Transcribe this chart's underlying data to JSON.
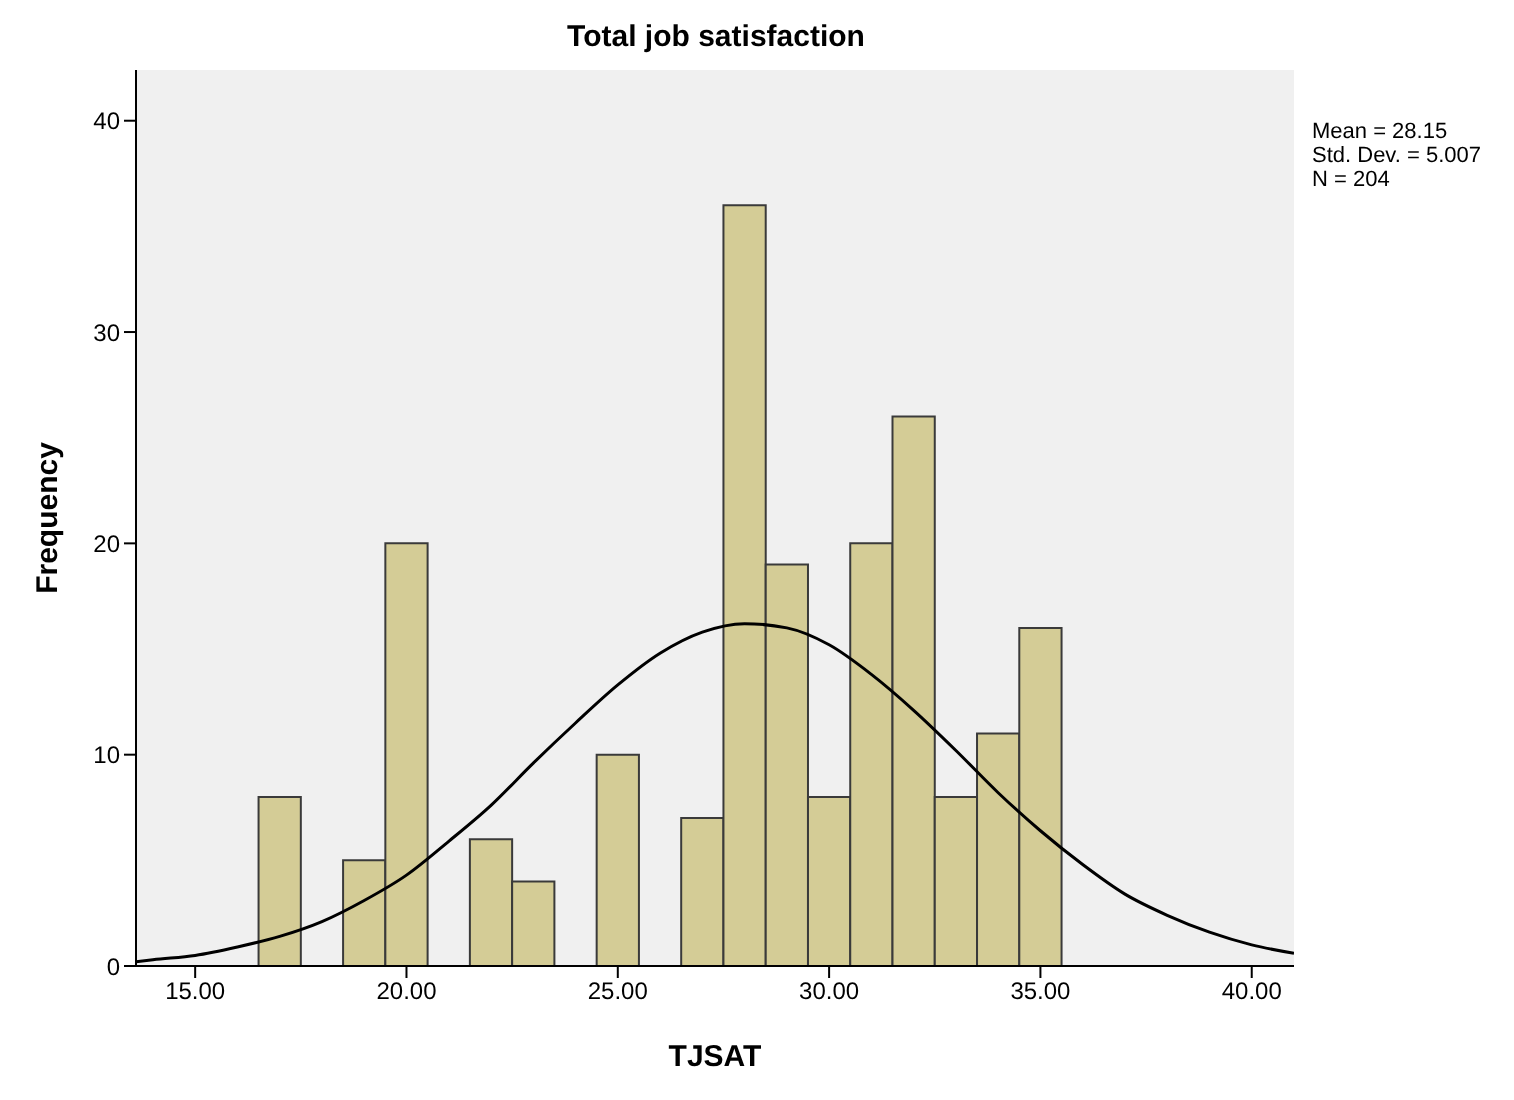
{
  "chart_data": {
    "type": "histogram",
    "title": "Total job satisfaction",
    "xlabel": "TJSAT",
    "ylabel": "Frequency",
    "bins": [
      16.5,
      17.5,
      18.5,
      19.5,
      20.5,
      21.5,
      22.5,
      23.5,
      24.5,
      25.5,
      26.5,
      27.5,
      28.5,
      29.5,
      30.5,
      31.5,
      32.5,
      33.5,
      34.5,
      35.5
    ],
    "values": [
      8,
      0,
      5,
      20,
      0,
      6,
      4,
      0,
      10,
      0,
      7,
      36,
      19,
      8,
      20,
      26,
      8,
      11,
      16
    ],
    "color": "#d4cc96",
    "series": [
      {
        "type": "line",
        "color": "#000000",
        "x": [
          13.6,
          14,
          15,
          16,
          17,
          18,
          19,
          20,
          21,
          22,
          23,
          24,
          25,
          26,
          27,
          28,
          29,
          30,
          31,
          32,
          33,
          34,
          35,
          36,
          37,
          38,
          39,
          40,
          41
        ],
        "values": [
          0.2,
          0.3,
          0.5,
          0.9,
          1.4,
          2.1,
          3.1,
          4.3,
          5.9,
          7.6,
          9.6,
          11.5,
          13.3,
          14.8,
          15.8,
          16.2,
          16.0,
          15.2,
          13.8,
          12.1,
          10.2,
          8.2,
          6.4,
          4.8,
          3.4,
          2.4,
          1.6,
          1.0,
          0.6
        ]
      }
    ],
    "xlim": [
      13.6,
      41.0
    ],
    "xticks": [
      {
        "value": 15,
        "label": "15.00"
      },
      {
        "value": 20,
        "label": "20.00"
      },
      {
        "value": 25,
        "label": "25.00"
      },
      {
        "value": 30,
        "label": "30.00"
      },
      {
        "value": 35,
        "label": "35.00"
      },
      {
        "value": 40,
        "label": "40.00"
      }
    ],
    "ylim": [
      0,
      42.4
    ],
    "yticks": [
      0,
      10,
      20,
      30,
      40
    ],
    "grid": false,
    "annotations": [
      "Mean = 28.15",
      "Std. Dev. = 5.007",
      "N = 204"
    ]
  }
}
